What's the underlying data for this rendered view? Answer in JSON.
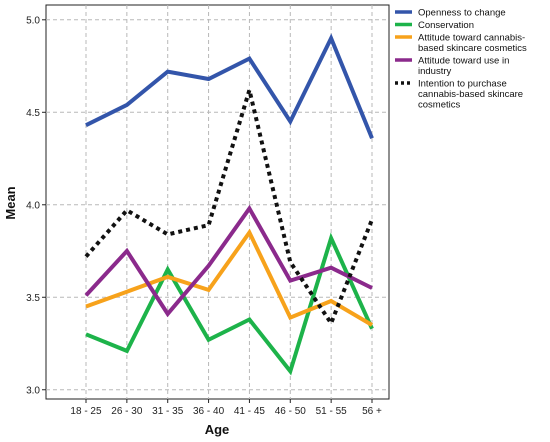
{
  "chart_data": {
    "type": "line",
    "title": "",
    "xlabel": "Age",
    "ylabel": "Mean",
    "categories": [
      "18 - 25",
      "26 - 30",
      "31 - 35",
      "36 - 40",
      "41 - 45",
      "46 - 50",
      "51 - 55",
      "56 +"
    ],
    "ylim": [
      2.95,
      5.08
    ],
    "yticks": [
      3.0,
      3.5,
      4.0,
      4.5,
      5.0
    ],
    "ytick_labels": [
      "3.0",
      "3.5",
      "4.0",
      "4.5",
      "5.0"
    ],
    "grid": true,
    "legend_position": "top-right",
    "series": [
      {
        "name": "Openness to change",
        "color": "#3355aa",
        "dash": "solid",
        "values": [
          4.43,
          4.54,
          4.72,
          4.68,
          4.79,
          4.45,
          4.9,
          4.36
        ]
      },
      {
        "name": "Conservation",
        "color": "#1db34a",
        "dash": "solid",
        "values": [
          3.3,
          3.21,
          3.65,
          3.27,
          3.38,
          3.1,
          3.82,
          3.33
        ]
      },
      {
        "name": "Attitude toward cannabis-based skincare cosmetics",
        "legend_lines": [
          "Attitude toward cannabis-",
          "based skincare cosmetics"
        ],
        "color": "#f7a21b",
        "dash": "solid",
        "values": [
          3.45,
          3.53,
          3.61,
          3.54,
          3.85,
          3.39,
          3.48,
          3.35
        ]
      },
      {
        "name": "Attitude toward use in industry",
        "legend_lines": [
          "Attitude toward use in",
          "industry"
        ],
        "color": "#8b2a8c",
        "dash": "solid",
        "values": [
          3.51,
          3.75,
          3.41,
          3.67,
          3.98,
          3.59,
          3.66,
          3.55
        ]
      },
      {
        "name": "Intention to purchase cannabis-based skincare cosmetics",
        "legend_lines": [
          "Intention to purchase",
          "cannabis-based skincare",
          "cosmetics"
        ],
        "color": "#111111",
        "dash": "dotted",
        "values": [
          3.72,
          3.97,
          3.84,
          3.89,
          4.62,
          3.69,
          3.36,
          3.92
        ]
      }
    ]
  }
}
